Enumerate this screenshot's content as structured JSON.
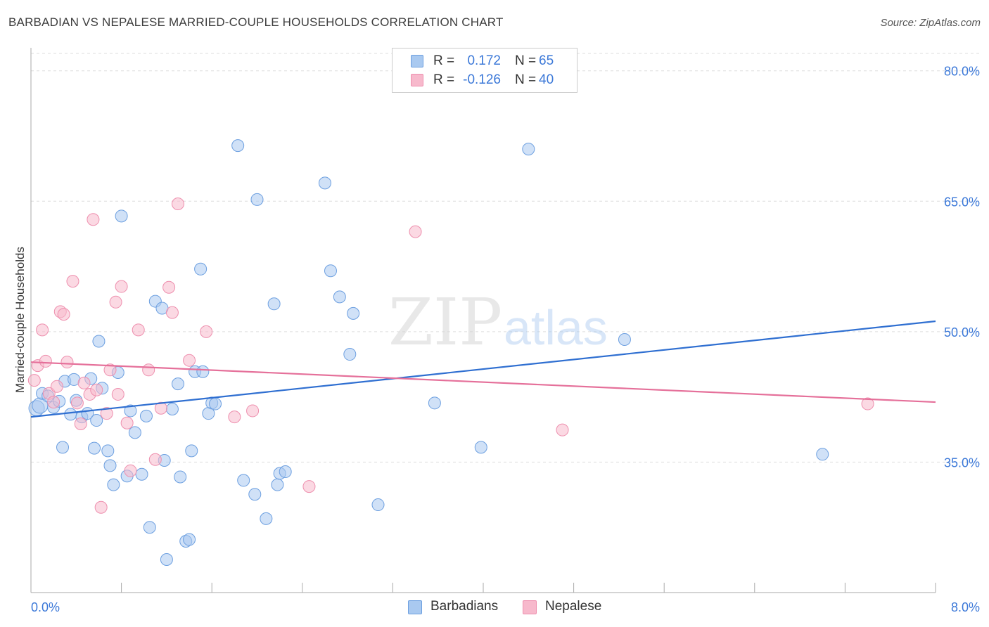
{
  "header": {
    "title": "BARBADIAN VS NEPALESE MARRIED-COUPLE HOUSEHOLDS CORRELATION CHART",
    "source": "Source: ZipAtlas.com"
  },
  "legend": {
    "rows": [
      {
        "r_label": "R =",
        "r_value": "0.172",
        "n_label": "N =",
        "n_value": "65"
      },
      {
        "r_label": "R =",
        "r_value": "-0.126",
        "n_label": "N =",
        "n_value": "40"
      }
    ],
    "series_names": [
      "Barbadians",
      "Nepalese"
    ]
  },
  "colors": {
    "barbadians_fill": "#a9c9f0",
    "barbadians_stroke": "#6c9fe0",
    "barbadians_line": "#2f6fd1",
    "nepalese_fill": "#f7b9cc",
    "nepalese_stroke": "#ee8fae",
    "nepalese_line": "#e5709a",
    "axis_label": "#3b78d8",
    "grid": "#dddddd"
  },
  "watermark": {
    "part1": "ZIP",
    "part2": "atlas"
  },
  "chart_data": {
    "type": "scatter",
    "title": "BARBADIAN VS NEPALESE MARRIED-COUPLE HOUSEHOLDS CORRELATION CHART",
    "xlabel": "",
    "ylabel": "Married-couple Households",
    "xlim": [
      0,
      8
    ],
    "ylim": [
      20,
      82
    ],
    "x_tick_labels": [
      "0.0%",
      "8.0%"
    ],
    "y_ticks": [
      35,
      50,
      65,
      80
    ],
    "y_tick_labels": [
      "35.0%",
      "50.0%",
      "65.0%",
      "80.0%"
    ],
    "grid": true,
    "series": [
      {
        "name": "Barbadians",
        "r": 0.172,
        "n": 65,
        "trend": {
          "x": [
            0,
            8
          ],
          "y": [
            40.2,
            51.2
          ]
        },
        "points": [
          [
            0.05,
            41.2
          ],
          [
            0.08,
            41.5
          ],
          [
            0.1,
            42.9
          ],
          [
            0.15,
            42.6
          ],
          [
            0.2,
            41.3
          ],
          [
            0.25,
            42.0
          ],
          [
            0.28,
            36.7
          ],
          [
            0.3,
            44.3
          ],
          [
            0.35,
            40.5
          ],
          [
            0.38,
            44.5
          ],
          [
            0.45,
            40.2
          ],
          [
            0.5,
            40.6
          ],
          [
            0.53,
            44.6
          ],
          [
            0.56,
            36.6
          ],
          [
            0.6,
            48.9
          ],
          [
            0.63,
            43.5
          ],
          [
            0.68,
            36.3
          ],
          [
            0.7,
            34.6
          ],
          [
            0.73,
            32.4
          ],
          [
            0.77,
            45.3
          ],
          [
            0.8,
            63.3
          ],
          [
            0.85,
            33.4
          ],
          [
            0.88,
            40.9
          ],
          [
            0.92,
            38.4
          ],
          [
            0.98,
            33.6
          ],
          [
            1.05,
            27.5
          ],
          [
            1.1,
            53.5
          ],
          [
            1.16,
            52.7
          ],
          [
            1.18,
            35.2
          ],
          [
            1.2,
            23.8
          ],
          [
            1.25,
            41.1
          ],
          [
            1.3,
            44.0
          ],
          [
            1.32,
            33.3
          ],
          [
            1.37,
            25.9
          ],
          [
            1.4,
            26.1
          ],
          [
            1.42,
            36.3
          ],
          [
            1.45,
            45.4
          ],
          [
            1.5,
            57.2
          ],
          [
            1.52,
            45.4
          ],
          [
            1.57,
            40.6
          ],
          [
            1.6,
            41.8
          ],
          [
            1.63,
            41.7
          ],
          [
            1.83,
            71.4
          ],
          [
            1.88,
            32.9
          ],
          [
            1.98,
            31.3
          ],
          [
            2.0,
            65.2
          ],
          [
            2.08,
            28.5
          ],
          [
            2.15,
            53.2
          ],
          [
            2.18,
            32.4
          ],
          [
            2.2,
            33.7
          ],
          [
            2.25,
            33.9
          ],
          [
            2.6,
            67.1
          ],
          [
            2.65,
            57.0
          ],
          [
            2.73,
            54.0
          ],
          [
            2.82,
            47.4
          ],
          [
            2.85,
            52.1
          ],
          [
            3.07,
            30.1
          ],
          [
            3.57,
            41.8
          ],
          [
            3.98,
            36.7
          ],
          [
            4.4,
            71.0
          ],
          [
            5.25,
            49.1
          ],
          [
            7.0,
            35.9
          ],
          [
            0.58,
            39.8
          ],
          [
            1.02,
            40.3
          ],
          [
            0.4,
            42.1
          ]
        ]
      },
      {
        "name": "Nepalese",
        "r": -0.126,
        "n": 40,
        "trend": {
          "x": [
            0,
            8
          ],
          "y": [
            46.5,
            41.9
          ]
        },
        "points": [
          [
            0.03,
            44.4
          ],
          [
            0.06,
            46.1
          ],
          [
            0.1,
            50.2
          ],
          [
            0.13,
            46.6
          ],
          [
            0.16,
            42.9
          ],
          [
            0.2,
            41.9
          ],
          [
            0.23,
            43.7
          ],
          [
            0.26,
            52.3
          ],
          [
            0.29,
            52.0
          ],
          [
            0.32,
            46.5
          ],
          [
            0.37,
            55.8
          ],
          [
            0.41,
            41.8
          ],
          [
            0.44,
            39.4
          ],
          [
            0.47,
            44.1
          ],
          [
            0.52,
            42.8
          ],
          [
            0.55,
            62.9
          ],
          [
            0.58,
            43.3
          ],
          [
            0.62,
            29.8
          ],
          [
            0.67,
            40.6
          ],
          [
            0.7,
            45.6
          ],
          [
            0.75,
            53.4
          ],
          [
            0.77,
            42.8
          ],
          [
            0.8,
            55.2
          ],
          [
            0.85,
            39.5
          ],
          [
            0.88,
            34.0
          ],
          [
            0.95,
            50.2
          ],
          [
            1.04,
            45.6
          ],
          [
            1.1,
            35.3
          ],
          [
            1.15,
            41.2
          ],
          [
            1.22,
            55.1
          ],
          [
            1.25,
            52.2
          ],
          [
            1.3,
            64.7
          ],
          [
            1.4,
            46.7
          ],
          [
            1.55,
            50.0
          ],
          [
            1.8,
            40.2
          ],
          [
            1.96,
            40.9
          ],
          [
            2.46,
            32.2
          ],
          [
            3.4,
            61.5
          ],
          [
            4.7,
            38.7
          ],
          [
            7.4,
            41.7
          ]
        ]
      }
    ]
  }
}
